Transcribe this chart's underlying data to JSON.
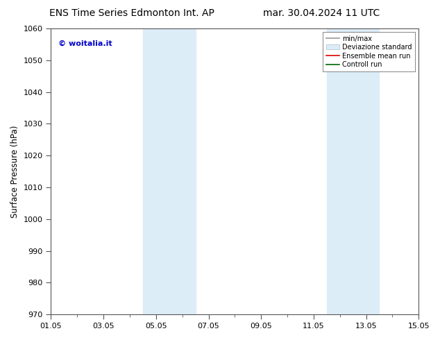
{
  "title_left": "ENS Time Series Edmonton Int. AP",
  "title_right": "mar. 30.04.2024 11 UTC",
  "ylabel": "Surface Pressure (hPa)",
  "ylim": [
    970,
    1060
  ],
  "yticks": [
    970,
    980,
    990,
    1000,
    1010,
    1020,
    1030,
    1040,
    1050,
    1060
  ],
  "xlim": [
    0,
    14
  ],
  "xtick_labels": [
    "01.05",
    "03.05",
    "05.05",
    "07.05",
    "09.05",
    "11.05",
    "13.05",
    "15.05"
  ],
  "xtick_positions": [
    0,
    2,
    4,
    6,
    8,
    10,
    12,
    14
  ],
  "shaded_bands": [
    {
      "x_start": 3.5,
      "x_end": 5.5,
      "color": "#ddedf8"
    },
    {
      "x_start": 10.5,
      "x_end": 12.5,
      "color": "#ddedf8"
    }
  ],
  "watermark": "© woitalia.it",
  "watermark_color": "#0000cc",
  "legend_items": [
    {
      "label": "min/max",
      "color": "#999999",
      "linestyle": "-",
      "linewidth": 1.2
    },
    {
      "label": "Deviazione standard",
      "color": "#ddedf8",
      "edgecolor": "#aabbcc",
      "linewidth": 0.5
    },
    {
      "label": "Ensemble mean run",
      "color": "#dd0000",
      "linestyle": "-",
      "linewidth": 1.2
    },
    {
      "label": "Controll run",
      "color": "#006600",
      "linestyle": "-",
      "linewidth": 1.2
    }
  ],
  "background_color": "#ffffff",
  "spine_color": "#555555",
  "title_fontsize": 10,
  "ylabel_fontsize": 8.5,
  "tick_fontsize": 8,
  "watermark_fontsize": 8,
  "legend_fontsize": 7
}
